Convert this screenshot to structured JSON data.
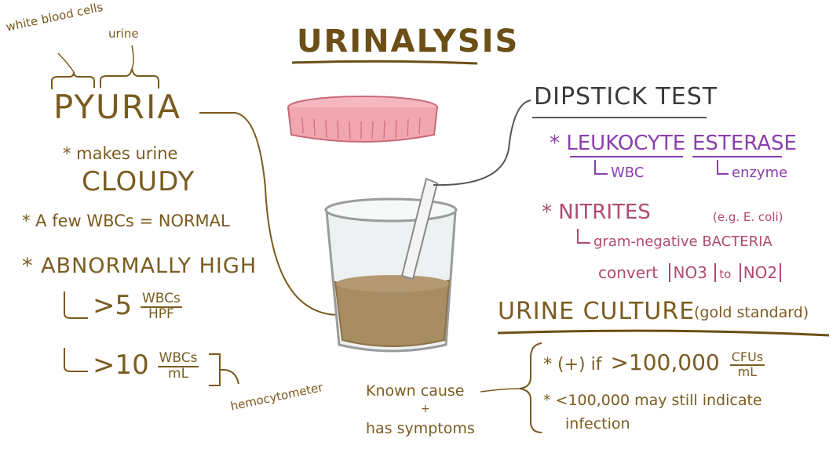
{
  "title": "URINALYSIS",
  "left": {
    "white_blood_cells_label": "white blood cells",
    "urine_label": "urine",
    "pyuria": "PYURIA",
    "makes_urine": "* makes urine",
    "cloudy": "CLOUDY",
    "few_wbcs": "* A few WBCs = NORMAL",
    "abnormally_high": "* ABNORMALLY HIGH",
    "threshold1_value": ">5",
    "threshold1_num": "WBCs",
    "threshold1_den": "HPF",
    "threshold2_value": ">10",
    "threshold2_num": "WBCs",
    "threshold2_den": "mL",
    "hemocytometer": "hemocytometer"
  },
  "dipstick": {
    "heading": "DIPSTICK TEST",
    "leukocyte": "* LEUKOCYTE",
    "esterase": "ESTERASE",
    "wbc_note": "WBC",
    "enzyme_note": "enzyme",
    "nitrites": "* NITRITES",
    "ecoli": "(e.g. E. coli)",
    "gram_negative": "gram-negative BACTERIA",
    "convert": "convert",
    "no3": "NO3",
    "to": "to",
    "no2": "NO2"
  },
  "culture": {
    "heading": "URINE CULTURE",
    "gold": "(gold standard)",
    "positive_if": "* (+) if",
    "positive_value": ">100,000",
    "cfu_num": "CFUs",
    "cfu_den": "mL",
    "less_line1": "* <100,000 may still indicate",
    "less_line2": "infection",
    "known_cause": "Known cause",
    "plus": "+",
    "has_symptoms": "has symptoms"
  },
  "colors": {
    "brown": "#7a5a1e",
    "purple": "#8a3fae",
    "pink": "#b04a72",
    "liquid": "#a88c62",
    "lid": "#f2a6b0"
  }
}
